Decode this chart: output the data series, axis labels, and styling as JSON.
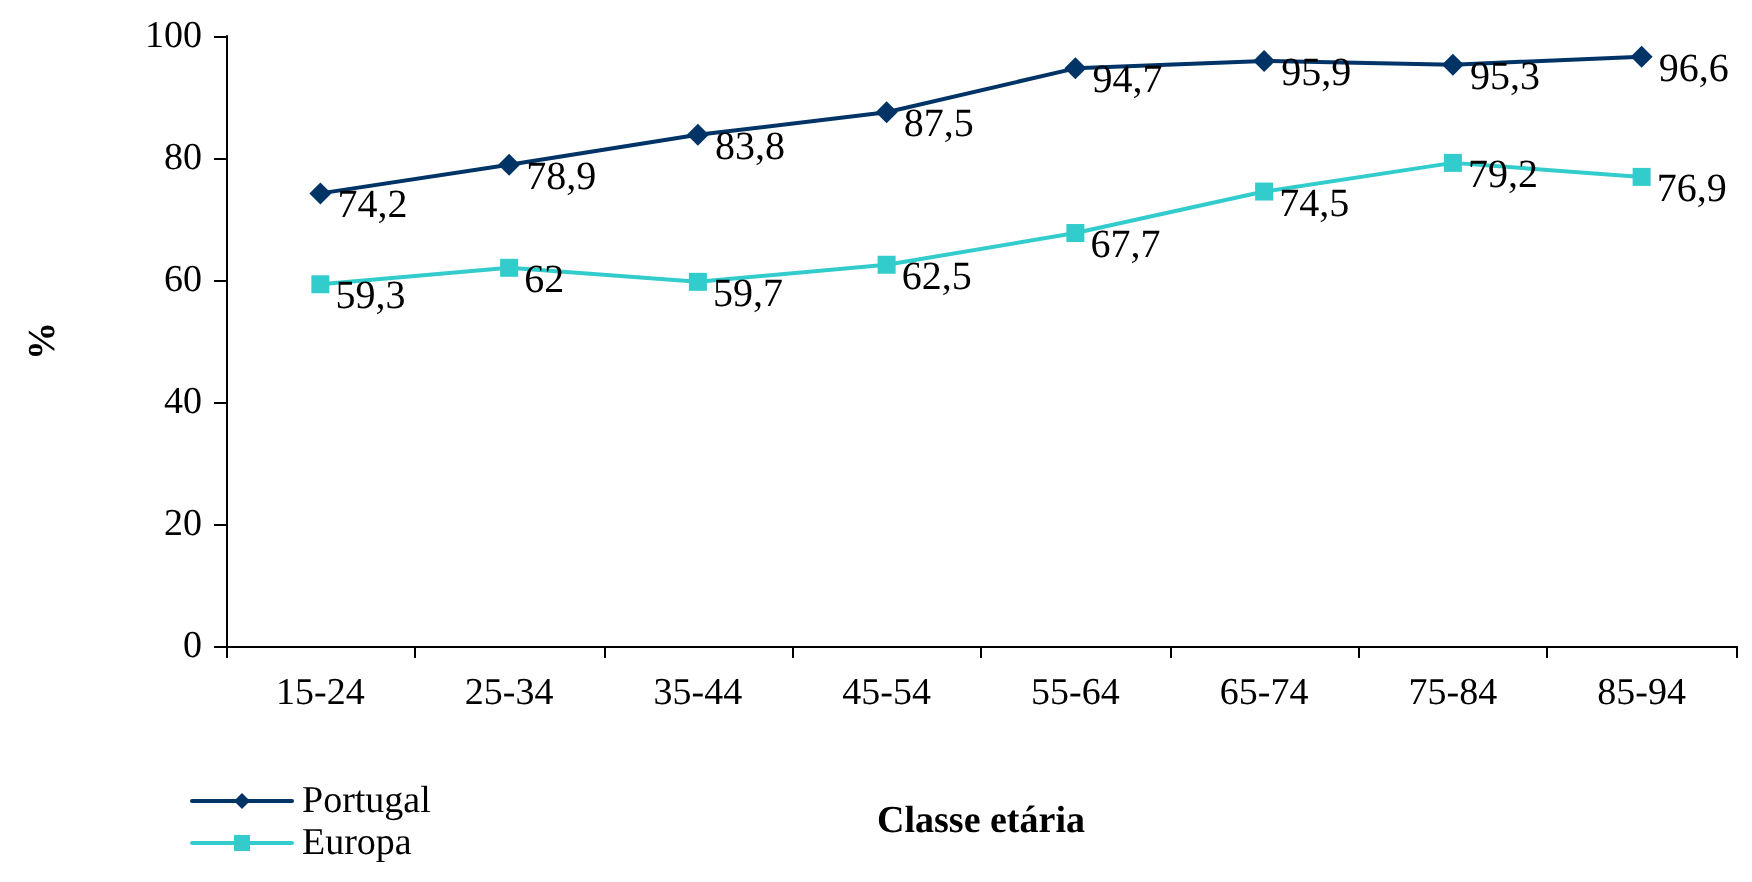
{
  "chart_data": {
    "type": "line",
    "xlabel": "Classe etária",
    "ylabel": "%",
    "categories": [
      "15-24",
      "25-34",
      "35-44",
      "45-54",
      "55-64",
      "65-74",
      "75-84",
      "85-94"
    ],
    "series": [
      {
        "name": "Portugal",
        "color": "#003366",
        "marker": "diamond",
        "values": [
          74.2,
          78.9,
          83.8,
          87.5,
          94.7,
          95.9,
          95.3,
          96.6
        ],
        "value_labels": [
          "74,2",
          "78,9",
          "83,8",
          "87,5",
          "94,7",
          "95,9",
          "95,3",
          "96,6"
        ]
      },
      {
        "name": "Europa",
        "color": "#33cccc",
        "marker": "square",
        "values": [
          59.3,
          62,
          59.7,
          62.5,
          67.7,
          74.5,
          79.2,
          76.9
        ],
        "value_labels": [
          "59,3",
          "62",
          "59,7",
          "62,5",
          "67,7",
          "74,5",
          "79,2",
          "76,9"
        ]
      }
    ],
    "ylim": [
      0,
      100
    ],
    "yticks": [
      0,
      20,
      40,
      60,
      80,
      100
    ],
    "grid": false,
    "legend": "bottom left",
    "line_style": "solid"
  }
}
